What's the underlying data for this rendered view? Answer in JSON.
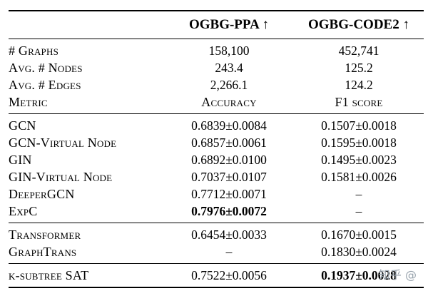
{
  "table": {
    "col_headers": [
      "OGBG-PPA ↑",
      "OGBG-CODE2 ↑"
    ],
    "stats": [
      {
        "label": "# Graphs",
        "ppa": "158,100",
        "code2": "452,741"
      },
      {
        "label": "Avg. # Nodes",
        "ppa": "243.4",
        "code2": "125.2"
      },
      {
        "label": "Avg. # Edges",
        "ppa": "2,266.1",
        "code2": "124.2"
      },
      {
        "label": "Metric",
        "ppa": "Accuracy",
        "code2": "F1 score"
      }
    ],
    "gnn_rows": [
      {
        "label": "GCN",
        "ppa": "0.6839±0.0084",
        "code2": "0.1507±0.0018"
      },
      {
        "label": "GCN-Virtual Node",
        "ppa": "0.6857±0.0061",
        "code2": "0.1595±0.0018"
      },
      {
        "label": "GIN",
        "ppa": "0.6892±0.0100",
        "code2": "0.1495±0.0023"
      },
      {
        "label": "GIN-Virtual Node",
        "ppa": "0.7037±0.0107",
        "code2": "0.1581±0.0026"
      },
      {
        "label": "DeeperGCN",
        "ppa": "0.7712±0.0071",
        "code2": "–"
      },
      {
        "label": "ExpC",
        "ppa": "0.7976±0.0072",
        "code2": "–"
      }
    ],
    "transformer_rows": [
      {
        "label": "Transformer",
        "ppa": "0.6454±0.0033",
        "code2": "0.1670±0.0015"
      },
      {
        "label": "GraphTrans",
        "ppa": "–",
        "code2": "0.1830±0.0024"
      }
    ],
    "sat_rows": [
      {
        "label": "k-subtree SAT",
        "ppa": "0.7522±0.0056",
        "code2": "0.1937±0.0028"
      }
    ]
  },
  "watermark": "知乎 @"
}
